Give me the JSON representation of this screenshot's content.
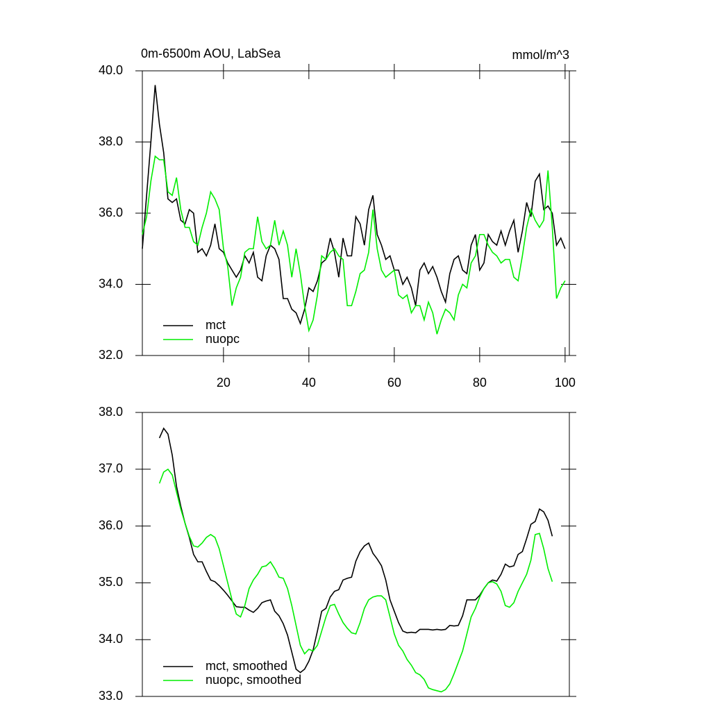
{
  "chart_data": [
    {
      "type": "line",
      "title": "0m-6500m AOU, LabSea",
      "units": "mmol/m^3",
      "x": [
        1,
        2,
        3,
        4,
        5,
        6,
        7,
        8,
        9,
        10,
        11,
        12,
        13,
        14,
        15,
        16,
        17,
        18,
        19,
        20,
        21,
        22,
        23,
        24,
        25,
        26,
        27,
        28,
        29,
        30,
        31,
        32,
        33,
        34,
        35,
        36,
        37,
        38,
        39,
        40,
        41,
        42,
        43,
        44,
        45,
        46,
        47,
        48,
        49,
        50,
        51,
        52,
        53,
        54,
        55,
        56,
        57,
        58,
        59,
        60,
        61,
        62,
        63,
        64,
        65,
        66,
        67,
        68,
        69,
        70,
        71,
        72,
        73,
        74,
        75,
        76,
        77,
        78,
        79,
        80,
        81,
        82,
        83,
        84,
        85,
        86,
        87,
        88,
        89,
        90,
        91,
        92,
        93,
        94,
        95,
        96,
        97,
        98,
        99,
        100
      ],
      "series": [
        {
          "name": "mct",
          "color": "#000000",
          "values": [
            35.0,
            36.5,
            38.0,
            39.6,
            38.5,
            37.7,
            36.4,
            36.3,
            36.4,
            35.8,
            35.7,
            36.1,
            36.0,
            34.9,
            35.0,
            34.8,
            35.1,
            35.7,
            35.0,
            34.9,
            34.6,
            34.4,
            34.2,
            34.4,
            34.8,
            34.6,
            34.9,
            34.2,
            34.1,
            34.8,
            35.1,
            35.0,
            34.7,
            33.6,
            33.6,
            33.3,
            33.2,
            32.9,
            33.3,
            33.9,
            33.8,
            34.1,
            34.6,
            34.7,
            35.3,
            34.9,
            34.2,
            35.3,
            34.8,
            34.8,
            35.9,
            35.7,
            35.1,
            36.1,
            36.5,
            35.4,
            35.1,
            34.7,
            34.8,
            34.4,
            34.4,
            34.0,
            34.2,
            33.9,
            33.4,
            34.4,
            34.6,
            34.3,
            34.5,
            34.2,
            33.8,
            33.5,
            34.3,
            34.7,
            34.8,
            34.4,
            34.3,
            35.1,
            35.4,
            34.4,
            34.6,
            35.4,
            35.2,
            35.1,
            35.5,
            35.1,
            35.5,
            35.8,
            34.9,
            35.5,
            36.3,
            35.9,
            36.9,
            37.1,
            36.1,
            36.2,
            36.0,
            35.1,
            35.3,
            35.0
          ]
        },
        {
          "name": "nuopc",
          "color": "#00ee00",
          "values": [
            35.4,
            35.9,
            36.9,
            37.6,
            37.5,
            37.5,
            36.6,
            36.5,
            37.0,
            36.1,
            35.6,
            35.6,
            35.2,
            35.1,
            35.6,
            36.0,
            36.6,
            36.4,
            36.1,
            35.0,
            34.5,
            33.4,
            33.9,
            34.2,
            34.9,
            35.0,
            35.0,
            35.9,
            35.2,
            35.0,
            35.1,
            35.8,
            35.1,
            35.5,
            35.1,
            34.2,
            35.0,
            34.3,
            33.4,
            32.7,
            33.0,
            33.7,
            34.8,
            34.7,
            34.9,
            35.0,
            34.8,
            34.7,
            33.4,
            33.4,
            33.8,
            34.3,
            34.4,
            34.9,
            36.1,
            35.0,
            34.4,
            34.2,
            34.3,
            34.4,
            33.7,
            33.6,
            33.7,
            33.2,
            33.4,
            33.4,
            33.0,
            33.5,
            33.2,
            32.6,
            33.0,
            33.3,
            33.2,
            33.0,
            33.7,
            34.0,
            33.9,
            34.6,
            34.8,
            35.4,
            35.4,
            35.1,
            34.9,
            34.8,
            34.6,
            34.7,
            34.7,
            34.2,
            34.1,
            34.8,
            35.6,
            36.1,
            35.8,
            35.6,
            35.8,
            37.2,
            35.6,
            33.6,
            33.9,
            34.1
          ]
        }
      ],
      "xlim": [
        1,
        101
      ],
      "xticks": [
        20,
        40,
        60,
        80,
        100
      ],
      "ylim": [
        32,
        40
      ],
      "yticks": [
        {
          "value": 32,
          "label": "32.0"
        },
        {
          "value": 34,
          "label": "34.0"
        },
        {
          "value": 36,
          "label": "36.0"
        },
        {
          "value": 38,
          "label": "38.0"
        },
        {
          "value": 40,
          "label": "40.0"
        }
      ],
      "legend": "lower left"
    },
    {
      "type": "line",
      "x": [
        5,
        6,
        7,
        8,
        9,
        10,
        11,
        12,
        13,
        14,
        15,
        16,
        17,
        18,
        19,
        20,
        21,
        22,
        23,
        24,
        25,
        26,
        27,
        28,
        29,
        30,
        31,
        32,
        33,
        34,
        35,
        36,
        37,
        38,
        39,
        40,
        41,
        42,
        43,
        44,
        45,
        46,
        47,
        48,
        49,
        50,
        51,
        52,
        53,
        54,
        55,
        56,
        57,
        58,
        59,
        60,
        61,
        62,
        63,
        64,
        65,
        66,
        67,
        68,
        69,
        70,
        71,
        72,
        73,
        74,
        75,
        76,
        77,
        78,
        79,
        80,
        81,
        82,
        83,
        84,
        85,
        86,
        87,
        88,
        89,
        90,
        91,
        92,
        93,
        94,
        95,
        96,
        97
      ],
      "series": [
        {
          "name": "mct, smoothed",
          "color": "#000000",
          "values": [
            37.55,
            37.72,
            37.62,
            37.25,
            36.7,
            36.35,
            36.05,
            35.8,
            35.5,
            35.37,
            35.37,
            35.2,
            35.05,
            35.02,
            34.95,
            34.87,
            34.78,
            34.68,
            34.58,
            34.57,
            34.57,
            34.52,
            34.48,
            34.55,
            34.65,
            34.68,
            34.7,
            34.5,
            34.42,
            34.28,
            34.08,
            33.78,
            33.48,
            33.42,
            33.48,
            33.62,
            33.82,
            34.15,
            34.5,
            34.55,
            34.75,
            34.85,
            34.88,
            35.05,
            35.08,
            35.1,
            35.38,
            35.55,
            35.65,
            35.7,
            35.52,
            35.42,
            35.3,
            35.05,
            34.7,
            34.5,
            34.3,
            34.15,
            34.12,
            34.13,
            34.12,
            34.18,
            34.18,
            34.18,
            34.17,
            34.18,
            34.17,
            34.18,
            34.25,
            34.24,
            34.25,
            34.42,
            34.7,
            34.7,
            34.7,
            34.78,
            34.9,
            35.0,
            35.05,
            35.03,
            35.15,
            35.33,
            35.28,
            35.3,
            35.5,
            35.55,
            35.78,
            36.03,
            36.08,
            36.3,
            36.25,
            36.1,
            35.82
          ]
        },
        {
          "name": "nuopc, smoothed",
          "color": "#00ee00",
          "values": [
            36.75,
            36.95,
            37.0,
            36.9,
            36.6,
            36.3,
            36.05,
            35.82,
            35.65,
            35.63,
            35.7,
            35.8,
            35.85,
            35.8,
            35.6,
            35.3,
            35.0,
            34.7,
            34.45,
            34.4,
            34.6,
            34.9,
            35.05,
            35.15,
            35.28,
            35.3,
            35.37,
            35.25,
            35.1,
            35.08,
            34.9,
            34.6,
            34.25,
            33.9,
            33.75,
            33.83,
            33.8,
            33.9,
            34.15,
            34.4,
            34.6,
            34.62,
            34.45,
            34.3,
            34.2,
            34.12,
            34.1,
            34.3,
            34.55,
            34.7,
            34.75,
            34.77,
            34.77,
            34.7,
            34.4,
            34.1,
            33.9,
            33.8,
            33.65,
            33.55,
            33.42,
            33.38,
            33.3,
            33.15,
            33.12,
            33.1,
            33.08,
            33.12,
            33.22,
            33.4,
            33.6,
            33.8,
            34.1,
            34.4,
            34.55,
            34.75,
            34.9,
            35.0,
            35.02,
            34.98,
            34.85,
            34.6,
            34.57,
            34.65,
            34.85,
            35.0,
            35.15,
            35.4,
            35.85,
            35.87,
            35.6,
            35.25,
            35.02
          ]
        }
      ],
      "xlim": [
        1,
        101
      ],
      "ylim": [
        33,
        38
      ],
      "yticks": [
        {
          "value": 33,
          "label": "33.0"
        },
        {
          "value": 34,
          "label": "34.0"
        },
        {
          "value": 35,
          "label": "35.0"
        },
        {
          "value": 36,
          "label": "36.0"
        },
        {
          "value": 37,
          "label": "37.0"
        },
        {
          "value": 38,
          "label": "38.0"
        }
      ],
      "legend": "lower left"
    }
  ]
}
